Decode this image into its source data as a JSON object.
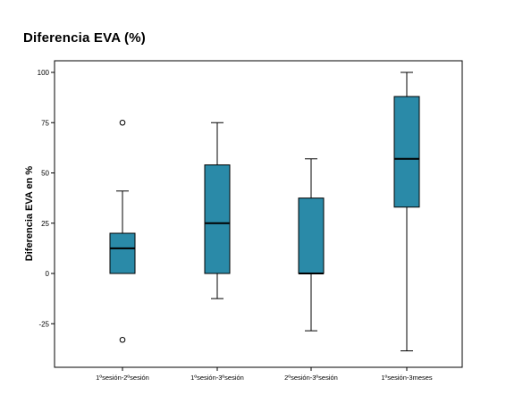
{
  "chart_data": {
    "type": "boxplot",
    "title": "Diferencia EVA (%)",
    "xlabel": "",
    "ylabel": "Diferencia EVA en %",
    "ylim": [
      -48,
      107
    ],
    "y_ticks": [
      100,
      75,
      50,
      25,
      0,
      -25
    ],
    "y_tick_labels": [
      "100",
      "75",
      "50",
      "25",
      "0",
      "-25"
    ],
    "grid": false,
    "legend": "none",
    "categories": [
      "1ºsesión-2ºsesión",
      "1ºsesión-3ºsesión",
      "2ºsesión-3ºsesión",
      "1ºsesión-3meses"
    ],
    "boxes": [
      {
        "whisker_low": 0,
        "q1": 0,
        "median": 12.5,
        "q3": 20,
        "whisker_high": 41,
        "outliers": [
          75,
          -33
        ]
      },
      {
        "whisker_low": -12.5,
        "q1": 0,
        "median": 25,
        "q3": 54,
        "whisker_high": 75,
        "outliers": []
      },
      {
        "whisker_low": -28.5,
        "q1": 0,
        "median": 0,
        "q3": 37.5,
        "whisker_high": 57,
        "outliers": []
      },
      {
        "whisker_low": -38.5,
        "q1": 33,
        "median": 57,
        "q3": 88,
        "whisker_high": 100,
        "outliers": []
      }
    ],
    "colors": {
      "box_fill": "#2a8aa8",
      "box_stroke": "#000000",
      "frame": "#000000"
    }
  }
}
